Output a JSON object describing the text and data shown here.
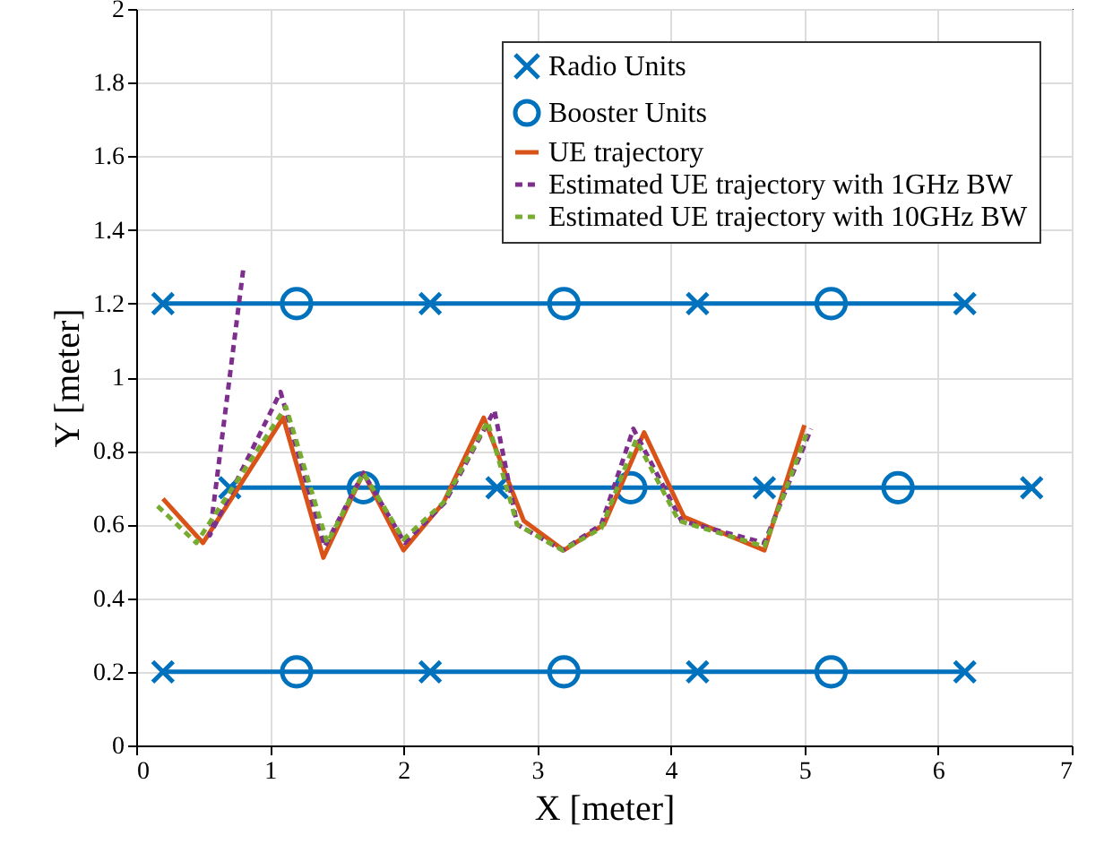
{
  "chart_data": {
    "type": "line",
    "xlabel": "X [meter]",
    "ylabel": "Y [meter]",
    "xlim": [
      0,
      7
    ],
    "xticks": [
      0,
      1,
      2,
      3,
      4,
      5,
      6,
      7
    ],
    "ylim": [
      0,
      2
    ],
    "yticks": [
      0,
      0.2,
      0.4,
      0.6,
      0.8,
      1,
      1.2,
      1.4,
      1.6,
      1.8,
      2
    ],
    "grid": true,
    "legend": "top right",
    "series": [
      {
        "color": "#0072bd",
        "line_style": "solid",
        "x": [
          0.2,
          6.2
        ],
        "values": [
          1.2,
          1.2
        ]
      },
      {
        "color": "#0072bd",
        "line_style": "solid",
        "x": [
          0.7,
          6.7
        ],
        "values": [
          0.7,
          0.7
        ]
      },
      {
        "color": "#0072bd",
        "line_style": "solid",
        "x": [
          0.2,
          6.2
        ],
        "values": [
          0.2,
          0.2
        ]
      },
      {
        "type": "scatter",
        "name": "Radio Units",
        "color": "#0072bd",
        "marker": "cross",
        "x": [
          0.2,
          2.2,
          4.2,
          6.2,
          0.7,
          2.7,
          4.7,
          6.7,
          0.2,
          2.2,
          4.2,
          6.2
        ],
        "values": [
          1.2,
          1.2,
          1.2,
          1.2,
          0.7,
          0.7,
          0.7,
          0.7,
          0.2,
          0.2,
          0.2,
          0.2
        ]
      },
      {
        "type": "scatter",
        "name": "Booster Units",
        "color": "#0072bd",
        "marker": "circle",
        "x": [
          1.2,
          3.2,
          5.2,
          1.7,
          3.7,
          5.7,
          1.2,
          3.2,
          5.2
        ],
        "values": [
          1.2,
          1.2,
          1.2,
          0.7,
          0.7,
          0.7,
          0.2,
          0.2,
          0.2
        ]
      },
      {
        "name": "UE trajectory",
        "color": "#d95319",
        "line_style": "solid",
        "x": [
          0.2,
          0.5,
          1.1,
          1.4,
          1.7,
          2.0,
          2.3,
          2.6,
          2.9,
          3.2,
          3.5,
          3.8,
          4.1,
          4.7,
          5.0
        ],
        "values": [
          0.67,
          0.55,
          0.89,
          0.51,
          0.74,
          0.53,
          0.66,
          0.89,
          0.61,
          0.53,
          0.6,
          0.85,
          0.62,
          0.53,
          0.87
        ]
      },
      {
        "name": "Estimated UE trajectory with 1GHz BW",
        "color": "#7e2f8e",
        "line_style": "dashed",
        "x": [
          0.8,
          0.55,
          1.08,
          1.41,
          1.7,
          2.01,
          2.31,
          2.68,
          2.85,
          3.19,
          3.48,
          3.72,
          4.08,
          4.7,
          5.05
        ],
        "values": [
          1.29,
          0.57,
          0.96,
          0.54,
          0.74,
          0.55,
          0.66,
          0.91,
          0.6,
          0.53,
          0.6,
          0.86,
          0.61,
          0.55,
          0.86
        ]
      },
      {
        "name": "Estimated UE trajectory with 10GHz BW",
        "color": "#77ac30",
        "line_style": "dashed",
        "x": [
          0.16,
          0.45,
          1.12,
          1.43,
          1.7,
          2.0,
          2.3,
          2.63,
          2.85,
          3.19,
          3.48,
          3.74,
          4.06,
          4.7,
          5.02
        ],
        "values": [
          0.65,
          0.55,
          0.92,
          0.55,
          0.74,
          0.56,
          0.66,
          0.88,
          0.6,
          0.53,
          0.59,
          0.83,
          0.61,
          0.54,
          0.85
        ]
      }
    ]
  }
}
